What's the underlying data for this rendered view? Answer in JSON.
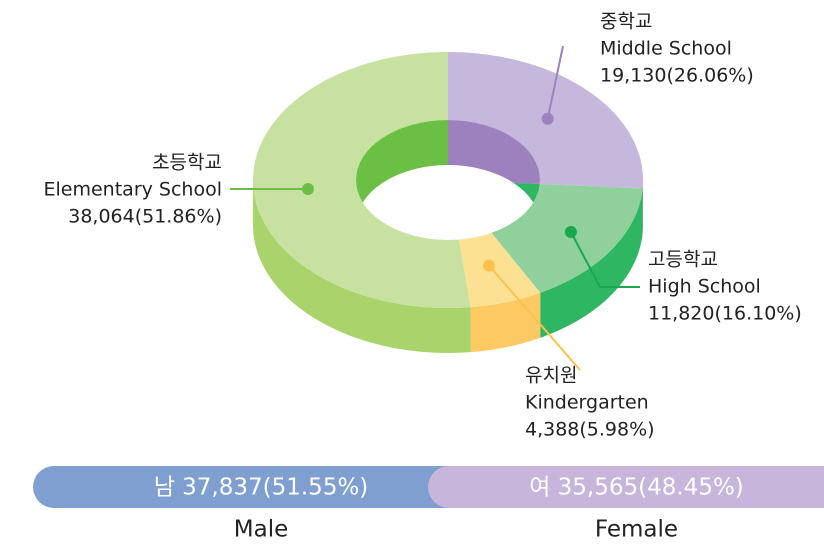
{
  "chart_data": [
    {
      "type": "pie",
      "categories": [
        "중학교",
        "고등학교",
        "유치원",
        "초등학교"
      ],
      "categories_en": [
        "Middle School",
        "High School",
        "Kindergarten",
        "Elementary School"
      ],
      "values": [
        19130,
        11820,
        4388,
        38064
      ],
      "value_labels": [
        "19,130(26.06%)",
        "11,820(16.10%)",
        "4,388(5.98%)",
        "38,064(51.86%)"
      ],
      "colors": [
        "#c6b7dc",
        "#8fd09c",
        "#fde192",
        "#c7e1a1"
      ],
      "side_colors": [
        "#9d81be",
        "#2fb663",
        "#fdc963",
        "#a9d46c"
      ],
      "inner_colors": [
        "#9d81be",
        "#2fb663",
        "#fdc963",
        "#6cbf45"
      ],
      "marker_colors": [
        "#9d81be",
        "#1aa84f",
        "#fdc24a",
        "#6cbf45"
      ]
    },
    {
      "type": "stacked_bar",
      "categories": [
        "Male",
        "Female"
      ],
      "values": [
        37837,
        35565
      ],
      "value_labels": [
        "남 37,837(51.55%)",
        "여 35,565(48.45%)"
      ],
      "colors": [
        "#7f9fd0",
        "#c7b5db"
      ]
    }
  ]
}
